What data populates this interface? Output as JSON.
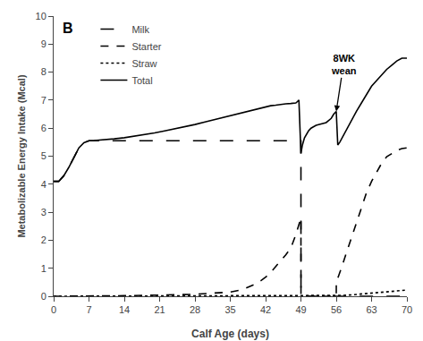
{
  "chart_data": {
    "type": "line",
    "title": "B",
    "xlabel": "Calf Age (days)",
    "ylabel": "Metabolizable Energy Intake (Mcal)",
    "xlim": [
      0,
      70
    ],
    "ylim": [
      0,
      10
    ],
    "xticks": [
      0,
      7,
      14,
      21,
      28,
      35,
      42,
      49,
      56,
      63,
      70
    ],
    "yticks": [
      0,
      1,
      2,
      3,
      4,
      5,
      6,
      7,
      8,
      9,
      10
    ],
    "grid": false,
    "legend": "upper left",
    "annotations": [
      {
        "text": "8WK\nwean",
        "x": 56,
        "y": 6.6
      }
    ],
    "series": [
      {
        "name": "Milk",
        "color": "#000000",
        "line_style": "longdash",
        "x": [
          0,
          1,
          2,
          3,
          4,
          5,
          6,
          7,
          49,
          49.01,
          56,
          56.01,
          70
        ],
        "values": [
          4.1,
          4.1,
          4.3,
          4.6,
          4.95,
          5.3,
          5.48,
          5.55,
          5.55,
          0.0,
          0.0,
          0.0,
          0.0
        ]
      },
      {
        "name": "Starter",
        "color": "#000000",
        "line_style": "dash",
        "x": [
          0,
          7,
          14,
          21,
          28,
          35,
          36,
          37,
          38,
          39,
          40,
          41,
          42,
          43,
          44,
          45,
          46,
          47,
          48,
          49,
          49.01,
          56,
          56.01,
          57,
          58,
          59,
          60,
          61,
          62,
          63,
          64,
          65,
          66,
          67,
          68,
          69,
          70
        ],
        "values": [
          0,
          0,
          0.02,
          0.04,
          0.07,
          0.15,
          0.18,
          0.22,
          0.28,
          0.35,
          0.44,
          0.55,
          0.68,
          0.85,
          1.05,
          1.25,
          1.48,
          1.72,
          2.2,
          2.8,
          0.0,
          0.0,
          0.5,
          1.0,
          1.55,
          2.1,
          2.65,
          3.2,
          3.7,
          4.1,
          4.45,
          4.75,
          4.98,
          5.1,
          5.2,
          5.27,
          5.3
        ]
      },
      {
        "name": "Straw",
        "color": "#000000",
        "line_style": "dot",
        "x": [
          0,
          49,
          50,
          56,
          57,
          59,
          61,
          63,
          65,
          67,
          70
        ],
        "values": [
          0,
          0.01,
          0.01,
          0.02,
          0.03,
          0.05,
          0.08,
          0.12,
          0.15,
          0.18,
          0.22
        ]
      },
      {
        "name": "Total",
        "color": "#000000",
        "line_style": "solid",
        "x": [
          0,
          1,
          2,
          3,
          4,
          5,
          6,
          7,
          8,
          9,
          10,
          11,
          12,
          14,
          16,
          18,
          20,
          22,
          24,
          26,
          28,
          30,
          32,
          34,
          36,
          38,
          40,
          41,
          42,
          43,
          44,
          45,
          46,
          47,
          48,
          48.3,
          48.6,
          49,
          49.3,
          49.7,
          50,
          50.5,
          51,
          52,
          53,
          54,
          55,
          55.5,
          56,
          56.3,
          56.7,
          57,
          57.5,
          58,
          59,
          60,
          61,
          62,
          63,
          64,
          65,
          66,
          67,
          68,
          69,
          70
        ],
        "values": [
          4.1,
          4.1,
          4.3,
          4.6,
          4.95,
          5.3,
          5.48,
          5.55,
          5.56,
          5.57,
          5.58,
          5.6,
          5.62,
          5.66,
          5.71,
          5.77,
          5.83,
          5.9,
          5.97,
          6.05,
          6.13,
          6.22,
          6.31,
          6.4,
          6.5,
          6.6,
          6.68,
          6.72,
          6.76,
          6.8,
          6.82,
          6.85,
          6.87,
          6.88,
          6.9,
          6.95,
          7.0,
          5.1,
          5.4,
          5.65,
          5.75,
          5.9,
          6.0,
          6.1,
          6.15,
          6.2,
          6.35,
          6.5,
          6.6,
          5.4,
          5.5,
          5.6,
          5.75,
          5.95,
          6.3,
          6.6,
          6.9,
          7.2,
          7.5,
          7.7,
          7.9,
          8.1,
          8.25,
          8.4,
          8.5,
          8.5
        ]
      }
    ]
  }
}
